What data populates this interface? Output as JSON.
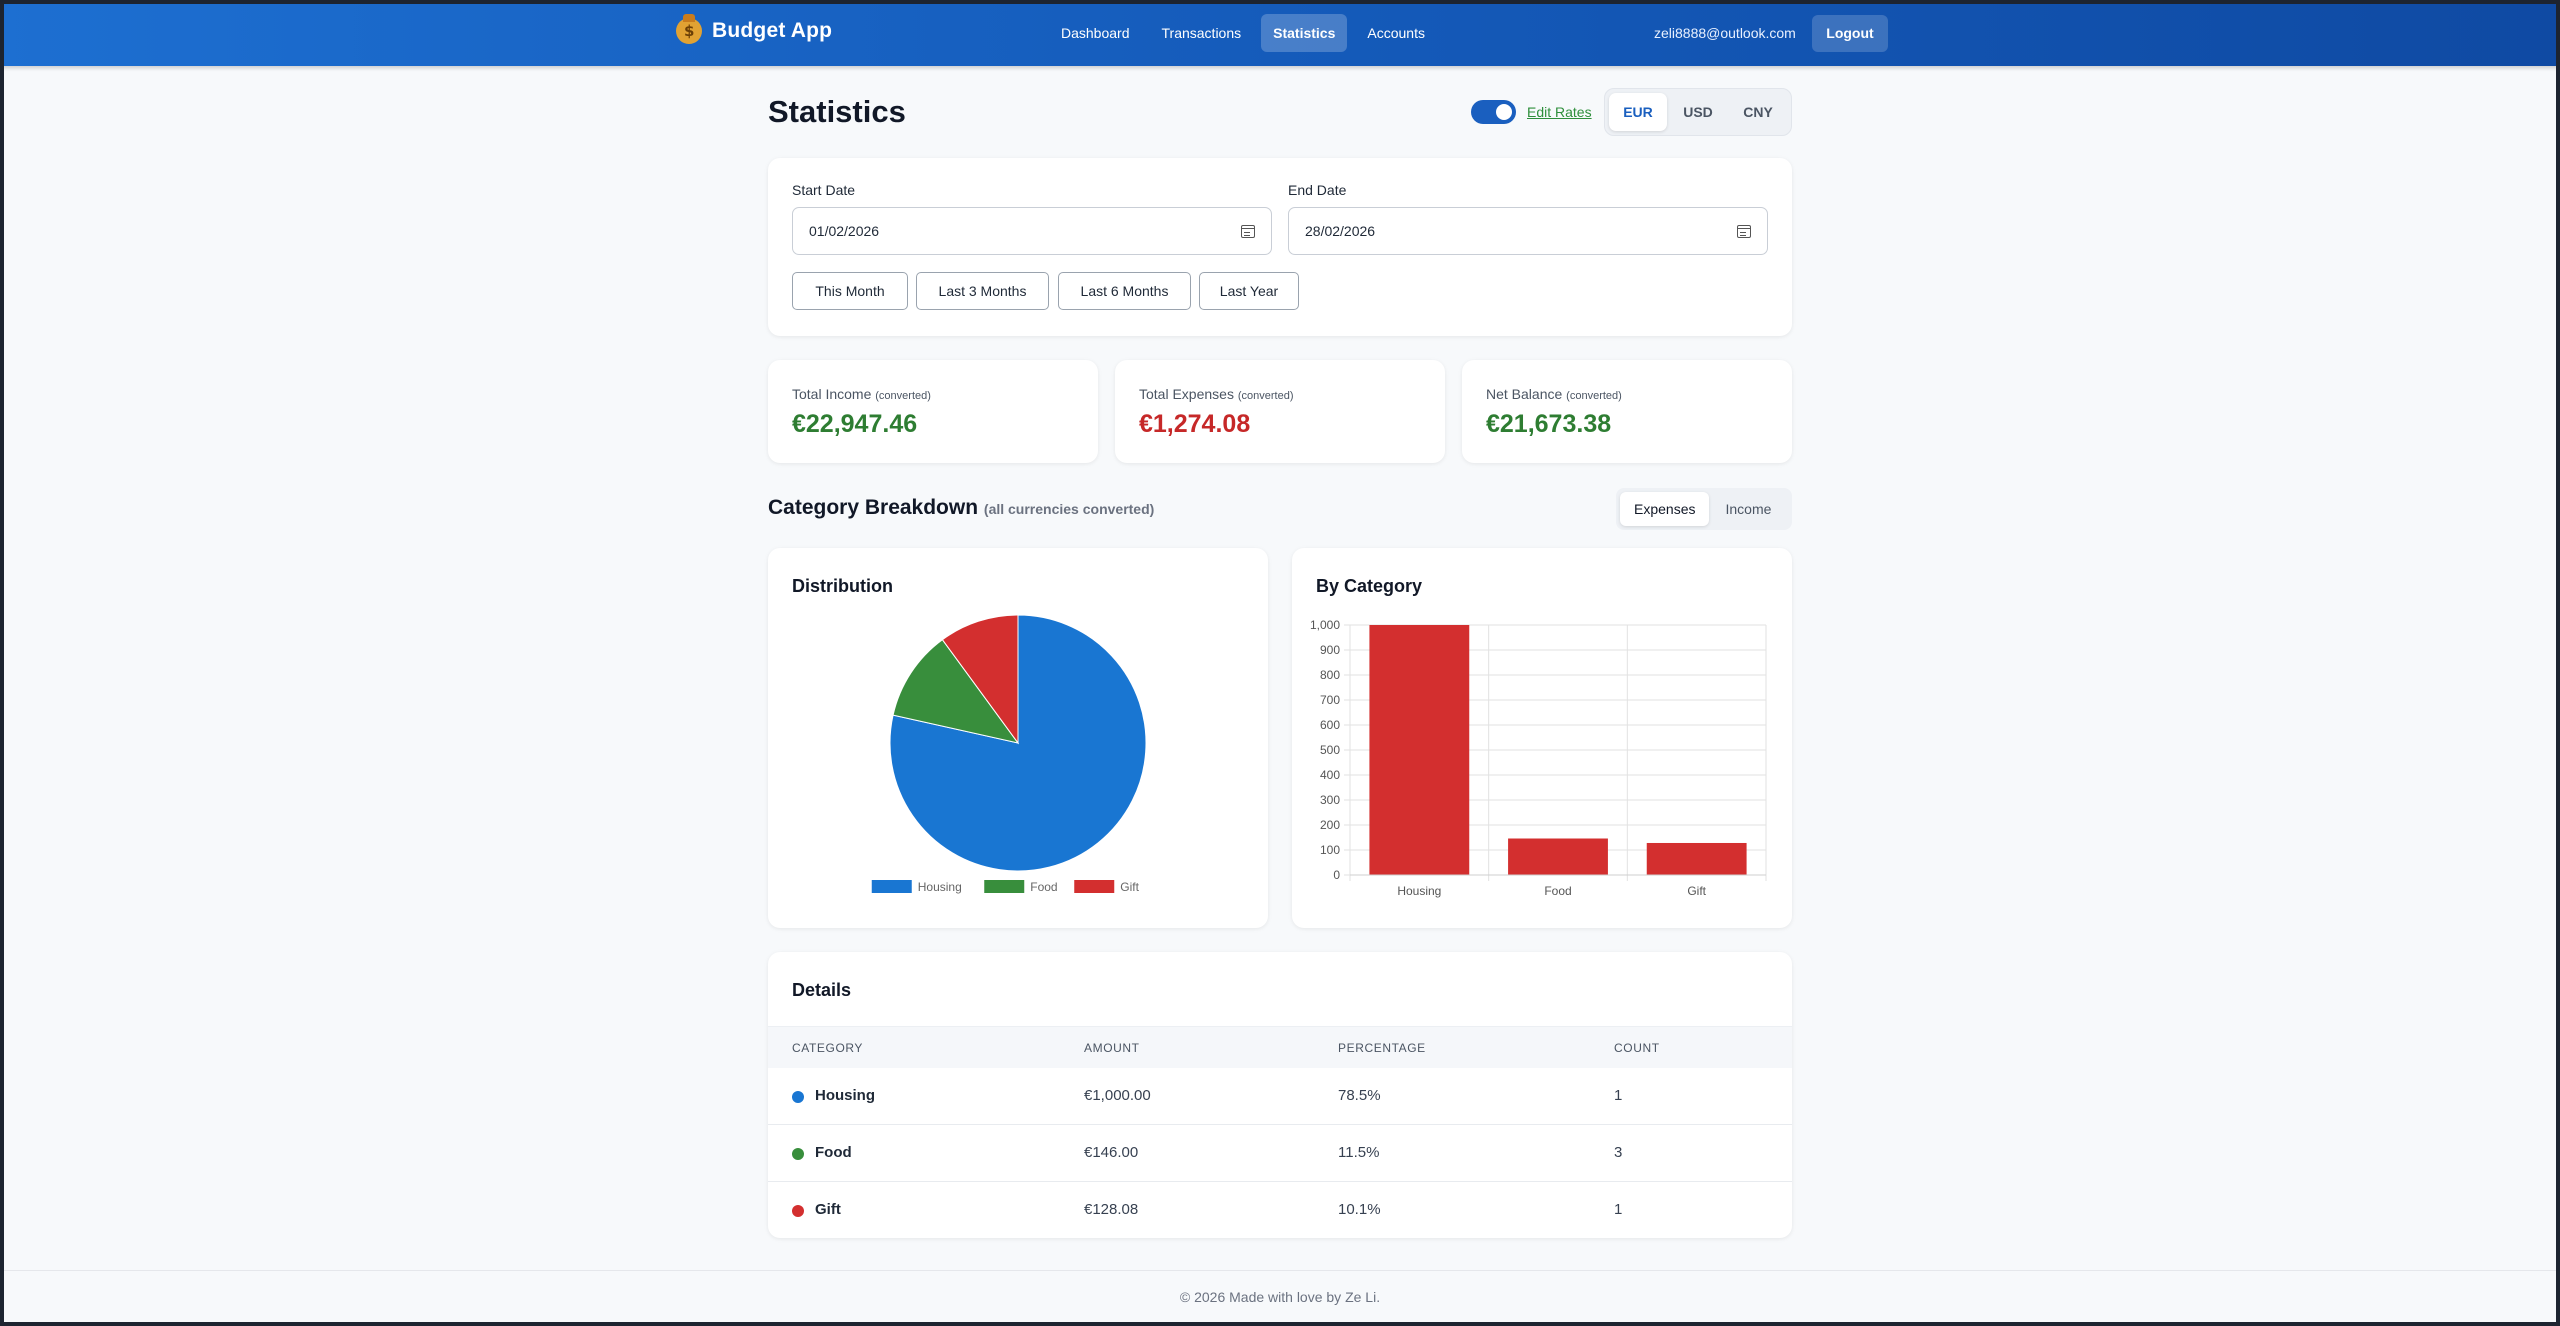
{
  "app": {
    "title": "Budget App"
  },
  "nav": {
    "items": [
      "Dashboard",
      "Transactions",
      "Statistics",
      "Accounts"
    ],
    "active": "Statistics",
    "user_email": "zeli8888@outlook.com",
    "logout_label": "Logout"
  },
  "page": {
    "title": "Statistics"
  },
  "rates": {
    "edit_label": "Edit Rates",
    "toggle_on": true
  },
  "currency": {
    "options": [
      "EUR",
      "USD",
      "CNY"
    ],
    "selected": "EUR"
  },
  "filter": {
    "start_label": "Start Date",
    "start_value": "01/02/2026",
    "end_label": "End Date",
    "end_value": "28/02/2026",
    "presets": [
      "This Month",
      "Last 3 Months",
      "Last 6 Months",
      "Last Year"
    ]
  },
  "summary": {
    "converted_note": "(converted)",
    "income": {
      "label": "Total Income",
      "value": "€22,947.46",
      "color": "#2e7d32"
    },
    "expenses": {
      "label": "Total Expenses",
      "value": "€1,274.08",
      "color": "#c62828"
    },
    "balance": {
      "label": "Net Balance",
      "value": "€21,673.38",
      "color": "#2e7d32"
    }
  },
  "breakdown": {
    "title": "Category Breakdown",
    "subtitle": "(all currencies converted)",
    "types": [
      "Expenses",
      "Income"
    ],
    "selected_type": "Expenses",
    "distribution_title": "Distribution",
    "by_category_title": "By Category"
  },
  "chart_data": [
    {
      "type": "pie",
      "title": "Distribution",
      "categories": [
        "Housing",
        "Food",
        "Gift"
      ],
      "values": [
        1000.0,
        146.0,
        128.08
      ],
      "colors": [
        "#1976d2",
        "#388e3c",
        "#d32f2f"
      ],
      "legend": "bottom"
    },
    {
      "type": "bar",
      "title": "By Category",
      "categories": [
        "Housing",
        "Food",
        "Gift"
      ],
      "values": [
        1000.0,
        146.0,
        128.08
      ],
      "color": "#d32f2f",
      "ylim": [
        0,
        1000
      ],
      "yticks": [
        0,
        100,
        200,
        300,
        400,
        500,
        600,
        700,
        800,
        900,
        1000
      ],
      "ytick_labels": [
        "0",
        "100",
        "200",
        "300",
        "400",
        "500",
        "600",
        "700",
        "800",
        "900",
        "1,000"
      ],
      "grid": true
    }
  ],
  "details": {
    "title": "Details",
    "columns": [
      "CATEGORY",
      "AMOUNT",
      "PERCENTAGE",
      "COUNT"
    ],
    "rows": [
      {
        "category": "Housing",
        "amount": "€1,000.00",
        "percentage": "78.5%",
        "count": "1",
        "color": "#1976d2"
      },
      {
        "category": "Food",
        "amount": "€146.00",
        "percentage": "11.5%",
        "count": "3",
        "color": "#388e3c"
      },
      {
        "category": "Gift",
        "amount": "€128.08",
        "percentage": "10.1%",
        "count": "1",
        "color": "#d32f2f"
      }
    ]
  },
  "footer": {
    "text": "© 2026 Made with love by Ze Li."
  }
}
